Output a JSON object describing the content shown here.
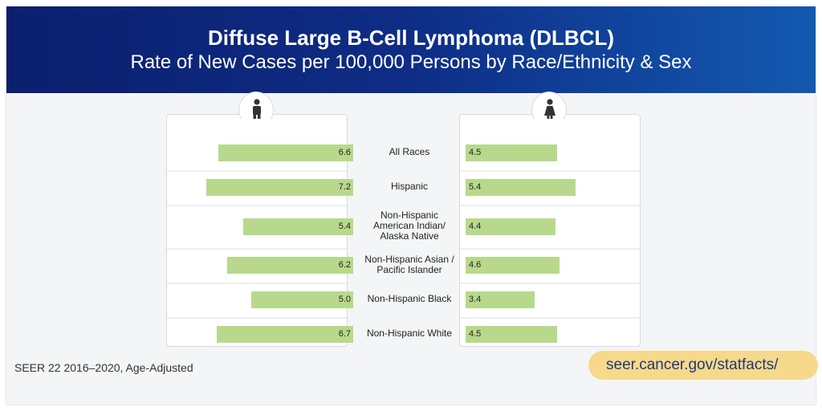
{
  "header": {
    "title": "Diffuse Large B-Cell Lymphoma (DLBCL)",
    "subtitle": "Rate of New Cases per 100,000 Persons by Race/Ethnicity & Sex"
  },
  "panels": {
    "male_label": "MALE",
    "female_label": "FEMALE"
  },
  "icons": {
    "male": "male-person-icon",
    "female": "female-person-icon"
  },
  "colors": {
    "header_dark": "#0b1f6e",
    "header_light": "#1359b0",
    "bar": "#b8d98c",
    "url_pill": "#f7d98b"
  },
  "chart_data": {
    "type": "bar",
    "title": "Diffuse Large B-Cell Lymphoma (DLBCL)",
    "subtitle": "Rate of New Cases per 100,000 Persons by Race/Ethnicity & Sex",
    "categories": [
      "All Races",
      "Hispanic",
      "Non-Hispanic American Indian/ Alaska Native",
      "Non-Hispanic Asian / Pacific Islander",
      "Non-Hispanic Black",
      "Non-Hispanic White"
    ],
    "category_lines": [
      [
        "All Races"
      ],
      [
        "Hispanic"
      ],
      [
        "Non-Hispanic",
        "American Indian/",
        "Alaska Native"
      ],
      [
        "Non-Hispanic Asian /",
        "Pacific Islander"
      ],
      [
        "Non-Hispanic Black"
      ],
      [
        "Non-Hispanic White"
      ]
    ],
    "series": [
      {
        "name": "MALE",
        "values": [
          6.6,
          7.2,
          5.4,
          6.2,
          5.0,
          6.7
        ]
      },
      {
        "name": "FEMALE",
        "values": [
          4.5,
          5.4,
          4.4,
          4.6,
          3.4,
          4.5
        ]
      }
    ],
    "value_labels": {
      "MALE": [
        "6.6",
        "7.2",
        "5.4",
        "6.2",
        "5.0",
        "6.7"
      ],
      "FEMALE": [
        "4.5",
        "5.4",
        "4.4",
        "4.6",
        "3.4",
        "4.5"
      ]
    },
    "orientation": "horizontal-mirrored",
    "grid": false,
    "xlabel": "",
    "ylabel": ""
  },
  "footer": {
    "source": "SEER 22 2016–2020, Age-Adjusted",
    "url": "seer.cancer.gov/statfacts/"
  }
}
